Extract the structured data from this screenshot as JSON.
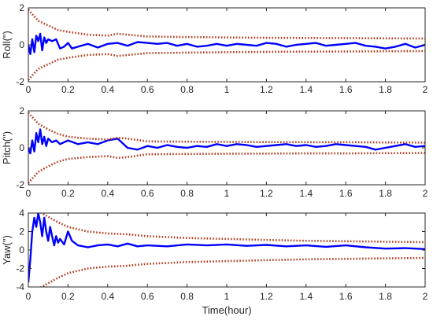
{
  "chart_data": [
    {
      "type": "line",
      "ylabel": "Roll(\")",
      "xlabel": "",
      "xlim": [
        0,
        2
      ],
      "ylim": [
        -2,
        2
      ],
      "xticks": [
        "0",
        "0.2",
        "0.4",
        "0.6",
        "0.8",
        "1",
        "1.2",
        "1.4",
        "1.6",
        "1.8",
        "2"
      ],
      "yticks": [
        "2",
        "0",
        "-2"
      ],
      "ytick_values": [
        2,
        0,
        -2
      ],
      "series": [
        {
          "role": "estimate",
          "color": "#0000ff",
          "x": [
            0,
            0.01,
            0.02,
            0.03,
            0.04,
            0.05,
            0.06,
            0.07,
            0.08,
            0.09,
            0.1,
            0.12,
            0.14,
            0.16,
            0.18,
            0.2,
            0.22,
            0.25,
            0.3,
            0.35,
            0.4,
            0.45,
            0.5,
            0.55,
            0.6,
            0.65,
            0.7,
            0.75,
            0.8,
            0.85,
            0.9,
            0.95,
            1.0,
            1.05,
            1.1,
            1.15,
            1.2,
            1.25,
            1.3,
            1.35,
            1.4,
            1.45,
            1.5,
            1.55,
            1.6,
            1.65,
            1.7,
            1.75,
            1.8,
            1.85,
            1.9,
            1.95,
            2.0
          ],
          "y": [
            0,
            -0.5,
            0.3,
            -0.4,
            0.5,
            0.2,
            0.6,
            -0.3,
            0.4,
            0.1,
            0.3,
            0.2,
            0.3,
            -0.2,
            -0.1,
            0.1,
            -0.2,
            -0.1,
            0.05,
            -0.15,
            0.05,
            0.1,
            -0.05,
            0.15,
            0.1,
            0.05,
            0.1,
            -0.05,
            0.05,
            -0.1,
            -0.05,
            0.05,
            -0.05,
            0.05,
            0.0,
            -0.05,
            0.1,
            0.05,
            -0.1,
            0.0,
            0.05,
            0.1,
            -0.05,
            0.0,
            0.05,
            0.1,
            -0.05,
            -0.1,
            -0.2,
            -0.1,
            0.05,
            -0.15,
            0.0
          ]
        },
        {
          "role": "upper-bound",
          "color": "#b23c1e",
          "x": [
            0,
            0.05,
            0.1,
            0.15,
            0.2,
            0.3,
            0.4,
            0.45,
            0.5,
            0.6,
            0.8,
            1.0,
            1.2,
            1.4,
            1.6,
            1.8,
            2.0
          ],
          "y": [
            1.9,
            1.3,
            1.05,
            0.8,
            0.7,
            0.55,
            0.5,
            0.6,
            0.55,
            0.45,
            0.42,
            0.4,
            0.38,
            0.37,
            0.36,
            0.35,
            0.34
          ]
        },
        {
          "role": "lower-bound",
          "color": "#b23c1e",
          "x": [
            0,
            0.05,
            0.1,
            0.15,
            0.2,
            0.3,
            0.4,
            0.45,
            0.5,
            0.6,
            0.8,
            1.0,
            1.2,
            1.4,
            1.6,
            1.8,
            2.0
          ],
          "y": [
            -1.9,
            -1.3,
            -1.05,
            -0.8,
            -0.7,
            -0.55,
            -0.5,
            -0.6,
            -0.55,
            -0.45,
            -0.42,
            -0.4,
            -0.38,
            -0.37,
            -0.36,
            -0.35,
            -0.34
          ]
        }
      ]
    },
    {
      "type": "line",
      "ylabel": "Pitch(\")",
      "xlabel": "",
      "xlim": [
        0,
        2
      ],
      "ylim": [
        -2,
        2
      ],
      "xticks": [
        "0",
        "0.2",
        "0.4",
        "0.6",
        "0.8",
        "1",
        "1.2",
        "1.4",
        "1.6",
        "1.8",
        "2"
      ],
      "yticks": [
        "2",
        "0",
        "-2"
      ],
      "ytick_values": [
        2,
        0,
        -2
      ],
      "series": [
        {
          "role": "estimate",
          "color": "#0000ff",
          "x": [
            0,
            0.01,
            0.02,
            0.03,
            0.04,
            0.05,
            0.06,
            0.07,
            0.08,
            0.09,
            0.1,
            0.12,
            0.14,
            0.16,
            0.18,
            0.2,
            0.25,
            0.3,
            0.35,
            0.4,
            0.45,
            0.5,
            0.55,
            0.6,
            0.65,
            0.7,
            0.75,
            0.8,
            0.85,
            0.9,
            0.95,
            1.0,
            1.05,
            1.1,
            1.15,
            1.2,
            1.25,
            1.3,
            1.35,
            1.4,
            1.45,
            1.5,
            1.55,
            1.6,
            1.65,
            1.7,
            1.75,
            1.8,
            1.85,
            1.9,
            1.95,
            2.0
          ],
          "y": [
            0,
            -0.3,
            0.4,
            -0.2,
            0.8,
            0.3,
            1.0,
            0.2,
            0.6,
            0.1,
            0.5,
            0.3,
            0.4,
            0.2,
            0.3,
            0.4,
            0.2,
            0.3,
            0.2,
            0.4,
            0.5,
            0.0,
            -0.1,
            0.1,
            0.0,
            0.15,
            0.05,
            0.0,
            0.1,
            0.05,
            0.2,
            0.1,
            0.2,
            0.15,
            0.05,
            0.1,
            0.15,
            0.2,
            0.1,
            0.15,
            0.05,
            0.1,
            0.2,
            0.15,
            0.1,
            0.05,
            -0.1,
            0.0,
            0.1,
            0.2,
            0.05,
            0.1
          ]
        },
        {
          "role": "upper-bound",
          "color": "#b23c1e",
          "x": [
            0,
            0.05,
            0.1,
            0.15,
            0.2,
            0.3,
            0.4,
            0.45,
            0.5,
            0.6,
            0.8,
            1.0,
            1.2,
            1.4,
            1.6,
            1.8,
            2.0
          ],
          "y": [
            1.9,
            1.3,
            1.0,
            0.75,
            0.6,
            0.5,
            0.45,
            0.55,
            0.5,
            0.35,
            0.33,
            0.32,
            0.31,
            0.3,
            0.3,
            0.29,
            0.28
          ]
        },
        {
          "role": "lower-bound",
          "color": "#b23c1e",
          "x": [
            0,
            0.05,
            0.1,
            0.15,
            0.2,
            0.3,
            0.4,
            0.45,
            0.5,
            0.6,
            0.8,
            1.0,
            1.2,
            1.4,
            1.6,
            1.8,
            2.0
          ],
          "y": [
            -1.9,
            -1.3,
            -1.0,
            -0.75,
            -0.6,
            -0.5,
            -0.45,
            -0.55,
            -0.5,
            -0.35,
            -0.33,
            -0.32,
            -0.31,
            -0.3,
            -0.3,
            -0.29,
            -0.28
          ]
        }
      ]
    },
    {
      "type": "line",
      "ylabel": "Yaw(\")",
      "xlabel": "Time(hour)",
      "xlim": [
        0,
        2
      ],
      "ylim": [
        -4,
        4
      ],
      "xticks": [
        "0",
        "0.2",
        "0.4",
        "0.6",
        "0.8",
        "1",
        "1.2",
        "1.4",
        "1.6",
        "1.8",
        "2"
      ],
      "yticks": [
        "4",
        "2",
        "0",
        "-2",
        "-4"
      ],
      "ytick_values": [
        4,
        2,
        0,
        -2,
        -4
      ],
      "series": [
        {
          "role": "estimate",
          "color": "#0000ff",
          "x": [
            0,
            0.01,
            0.02,
            0.03,
            0.04,
            0.05,
            0.06,
            0.07,
            0.08,
            0.09,
            0.1,
            0.11,
            0.12,
            0.13,
            0.14,
            0.15,
            0.16,
            0.18,
            0.2,
            0.22,
            0.25,
            0.3,
            0.35,
            0.4,
            0.45,
            0.5,
            0.55,
            0.6,
            0.7,
            0.8,
            0.9,
            1.0,
            1.1,
            1.2,
            1.3,
            1.4,
            1.5,
            1.6,
            1.7,
            1.8,
            1.9,
            2.0
          ],
          "y": [
            -3.5,
            -1.0,
            2.0,
            3.5,
            2.5,
            4.0,
            3.0,
            1.5,
            3.5,
            2.0,
            1.0,
            2.5,
            1.5,
            0.5,
            1.5,
            0.8,
            1.2,
            0.6,
            2.0,
            1.0,
            0.5,
            0.3,
            0.5,
            0.6,
            0.4,
            0.7,
            0.4,
            0.5,
            0.4,
            0.6,
            0.5,
            0.6,
            0.45,
            0.55,
            0.4,
            0.5,
            0.35,
            0.5,
            0.3,
            0.15,
            0.2,
            0.1
          ]
        },
        {
          "role": "upper-bound",
          "color": "#b23c1e",
          "x": [
            0,
            0.05,
            0.1,
            0.15,
            0.2,
            0.3,
            0.4,
            0.5,
            0.6,
            0.8,
            1.0,
            1.2,
            1.4,
            1.6,
            1.8,
            2.0
          ],
          "y": [
            5.0,
            4.2,
            3.6,
            3.0,
            2.5,
            2.0,
            1.8,
            1.7,
            1.5,
            1.3,
            1.2,
            1.1,
            1.0,
            0.95,
            0.9,
            0.85
          ]
        },
        {
          "role": "lower-bound",
          "color": "#b23c1e",
          "x": [
            0,
            0.05,
            0.1,
            0.15,
            0.2,
            0.3,
            0.4,
            0.5,
            0.6,
            0.8,
            1.0,
            1.2,
            1.4,
            1.6,
            1.8,
            2.0
          ],
          "y": [
            -5.0,
            -4.2,
            -3.6,
            -3.0,
            -2.5,
            -2.0,
            -1.8,
            -1.7,
            -1.5,
            -1.3,
            -1.2,
            -1.1,
            -1.0,
            -0.95,
            -0.9,
            -0.85
          ]
        }
      ]
    }
  ]
}
